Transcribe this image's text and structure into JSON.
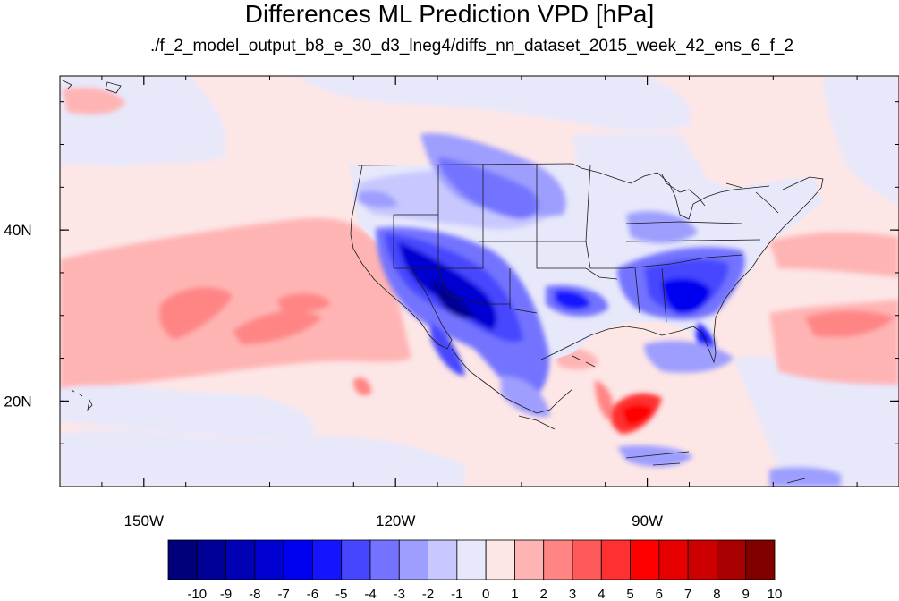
{
  "title": "Differences ML Prediction VPD [hPa]",
  "subtitle": "./f_2_model_output_b8_e_30_d3_lneg4/diffs_nn_dataset_2015_week_42_ens_6_f_2",
  "map": {
    "lon_range": [
      -160,
      -60
    ],
    "lat_range": [
      10,
      58
    ],
    "lon_ticks": [
      {
        "lon": -150,
        "label": "150W"
      },
      {
        "lon": -120,
        "label": "120W"
      },
      {
        "lon": -90,
        "label": "90W"
      }
    ],
    "lat_ticks": [
      {
        "lat": 40,
        "label": "40N"
      },
      {
        "lat": 20,
        "label": "20N"
      }
    ]
  },
  "colorbar": {
    "labels": [
      "-10",
      "-9",
      "-8",
      "-7",
      "-6",
      "-5",
      "-4",
      "-3",
      "-2",
      "-1",
      "0",
      "1",
      "2",
      "3",
      "4",
      "5",
      "6",
      "7",
      "8",
      "9",
      "10"
    ],
    "colors": [
      "#00007a",
      "#000096",
      "#0000b4",
      "#0000d2",
      "#0000f0",
      "#1414ff",
      "#4646ff",
      "#7373ff",
      "#9e9eff",
      "#c8c8ff",
      "#e8e8fb",
      "#fde6e6",
      "#ffb4b4",
      "#ff8585",
      "#ff5a5a",
      "#ff3030",
      "#ff0000",
      "#e60000",
      "#cc0000",
      "#a80000",
      "#800000"
    ]
  }
}
